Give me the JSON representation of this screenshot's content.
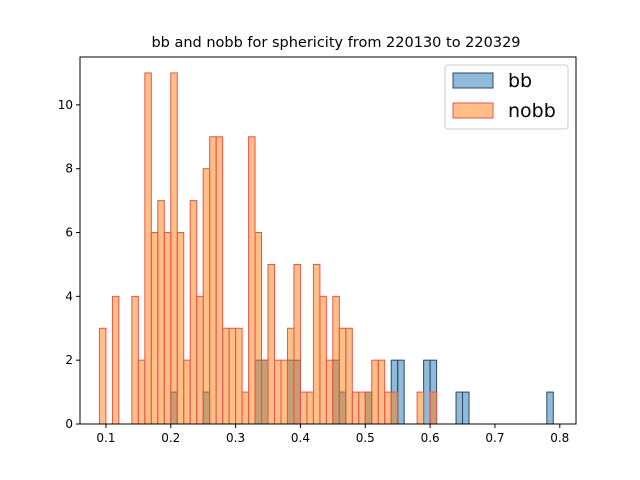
{
  "chart_data": {
    "type": "bar",
    "title": "bb and nobb for sphericity from 220130 to 220329",
    "xlabel": "",
    "ylabel": "",
    "xlim": [
      0.06,
      0.825
    ],
    "ylim": [
      0,
      11.5
    ],
    "xticks": [
      "0.1",
      "0.2",
      "0.3",
      "0.4",
      "0.5",
      "0.6",
      "0.7",
      "0.8"
    ],
    "yticks": [
      "0",
      "2",
      "4",
      "6",
      "8",
      "10"
    ],
    "bin_width": 0.01,
    "grid": false,
    "legend_position": "top-right",
    "series": [
      {
        "name": "bb",
        "color": "#1f77b4",
        "bars": [
          {
            "x": 0.2,
            "y": 1
          },
          {
            "x": 0.25,
            "y": 1
          },
          {
            "x": 0.33,
            "y": 2
          },
          {
            "x": 0.34,
            "y": 2
          },
          {
            "x": 0.38,
            "y": 2
          },
          {
            "x": 0.39,
            "y": 2
          },
          {
            "x": 0.45,
            "y": 2
          },
          {
            "x": 0.46,
            "y": 1
          },
          {
            "x": 0.5,
            "y": 1
          },
          {
            "x": 0.54,
            "y": 2
          },
          {
            "x": 0.55,
            "y": 2
          },
          {
            "x": 0.59,
            "y": 2
          },
          {
            "x": 0.6,
            "y": 2
          },
          {
            "x": 0.64,
            "y": 1
          },
          {
            "x": 0.65,
            "y": 1
          },
          {
            "x": 0.78,
            "y": 1
          }
        ]
      },
      {
        "name": "nobb",
        "color": "#ff7f0e",
        "bars": [
          {
            "x": 0.09,
            "y": 3
          },
          {
            "x": 0.11,
            "y": 4
          },
          {
            "x": 0.14,
            "y": 4
          },
          {
            "x": 0.15,
            "y": 2
          },
          {
            "x": 0.16,
            "y": 11
          },
          {
            "x": 0.17,
            "y": 6
          },
          {
            "x": 0.18,
            "y": 7
          },
          {
            "x": 0.19,
            "y": 6
          },
          {
            "x": 0.2,
            "y": 11
          },
          {
            "x": 0.21,
            "y": 6
          },
          {
            "x": 0.22,
            "y": 2
          },
          {
            "x": 0.23,
            "y": 7
          },
          {
            "x": 0.24,
            "y": 4
          },
          {
            "x": 0.25,
            "y": 8
          },
          {
            "x": 0.26,
            "y": 9
          },
          {
            "x": 0.27,
            "y": 9
          },
          {
            "x": 0.28,
            "y": 3
          },
          {
            "x": 0.29,
            "y": 3
          },
          {
            "x": 0.3,
            "y": 3
          },
          {
            "x": 0.31,
            "y": 1
          },
          {
            "x": 0.32,
            "y": 9
          },
          {
            "x": 0.33,
            "y": 6
          },
          {
            "x": 0.34,
            "y": 2
          },
          {
            "x": 0.35,
            "y": 5
          },
          {
            "x": 0.36,
            "y": 2
          },
          {
            "x": 0.37,
            "y": 2
          },
          {
            "x": 0.38,
            "y": 3
          },
          {
            "x": 0.39,
            "y": 5
          },
          {
            "x": 0.4,
            "y": 1
          },
          {
            "x": 0.41,
            "y": 1
          },
          {
            "x": 0.42,
            "y": 5
          },
          {
            "x": 0.43,
            "y": 4
          },
          {
            "x": 0.44,
            "y": 2
          },
          {
            "x": 0.45,
            "y": 4
          },
          {
            "x": 0.46,
            "y": 3
          },
          {
            "x": 0.47,
            "y": 3
          },
          {
            "x": 0.48,
            "y": 1
          },
          {
            "x": 0.49,
            "y": 1
          },
          {
            "x": 0.5,
            "y": 1
          },
          {
            "x": 0.51,
            "y": 2
          },
          {
            "x": 0.52,
            "y": 2
          },
          {
            "x": 0.53,
            "y": 1
          },
          {
            "x": 0.54,
            "y": 1
          },
          {
            "x": 0.58,
            "y": 1
          },
          {
            "x": 0.6,
            "y": 1
          }
        ]
      }
    ]
  }
}
